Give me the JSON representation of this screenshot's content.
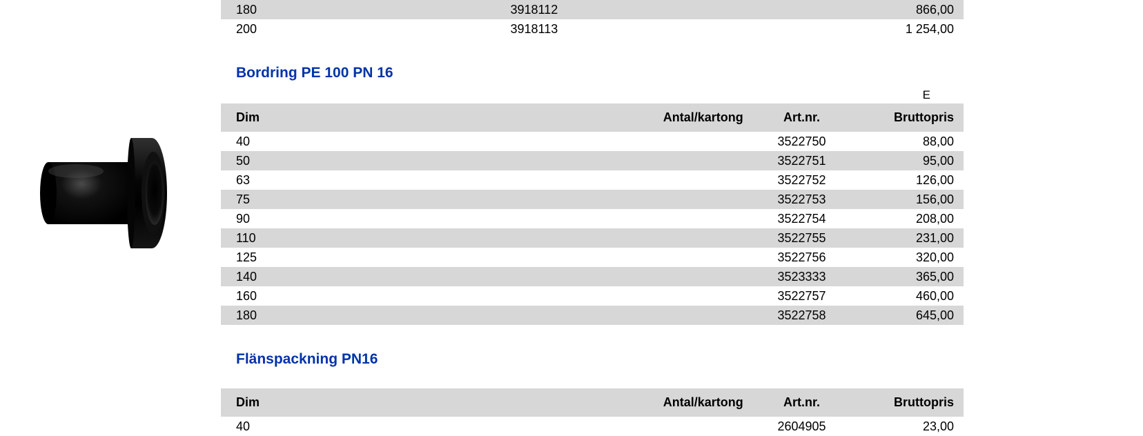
{
  "topTable": {
    "rows": [
      {
        "dim": "180",
        "antal": "",
        "artnr": "3918112",
        "price": "866,00",
        "stripe": "even"
      },
      {
        "dim": "200",
        "antal": "",
        "artnr": "3918113",
        "price": "1 254,00",
        "stripe": "odd"
      }
    ]
  },
  "sections": [
    {
      "title": "Bordring PE 100 PN 16",
      "suffix": "E",
      "headers": {
        "dim": "Dim",
        "antal": "Antal/kartong",
        "artnr": "Art.nr.",
        "price": "Bruttopris"
      },
      "rows": [
        {
          "dim": "40",
          "antal": "",
          "artnr": "3522750",
          "price": "88,00",
          "stripe": "odd"
        },
        {
          "dim": "50",
          "antal": "",
          "artnr": "3522751",
          "price": "95,00",
          "stripe": "even"
        },
        {
          "dim": "63",
          "antal": "",
          "artnr": "3522752",
          "price": "126,00",
          "stripe": "odd"
        },
        {
          "dim": "75",
          "antal": "",
          "artnr": "3522753",
          "price": "156,00",
          "stripe": "even"
        },
        {
          "dim": "90",
          "antal": "",
          "artnr": "3522754",
          "price": "208,00",
          "stripe": "odd"
        },
        {
          "dim": "110",
          "antal": "",
          "artnr": "3522755",
          "price": "231,00",
          "stripe": "even"
        },
        {
          "dim": "125",
          "antal": "",
          "artnr": "3522756",
          "price": "320,00",
          "stripe": "odd"
        },
        {
          "dim": "140",
          "antal": "",
          "artnr": "3523333",
          "price": "365,00",
          "stripe": "even"
        },
        {
          "dim": "160",
          "antal": "",
          "artnr": "3522757",
          "price": "460,00",
          "stripe": "odd"
        },
        {
          "dim": "180",
          "antal": "",
          "artnr": "3522758",
          "price": "645,00",
          "stripe": "even"
        }
      ]
    },
    {
      "title": "Flänspackning PN16",
      "suffix": "",
      "headers": {
        "dim": "Dim",
        "antal": "Antal/kartong",
        "artnr": "Art.nr.",
        "price": "Bruttopris"
      },
      "rows": [
        {
          "dim": "40",
          "antal": "",
          "artnr": "2604905",
          "price": "23,00",
          "stripe": "odd"
        }
      ]
    }
  ],
  "styling": {
    "title_color": "#0033aa",
    "header_bg": "#d7d7d7",
    "stripe_even_bg": "#d7d7d7",
    "stripe_odd_bg": "#ffffff",
    "text_color": "#000000",
    "font_family": "Arial",
    "base_fontsize": 18,
    "title_fontsize": 21
  }
}
